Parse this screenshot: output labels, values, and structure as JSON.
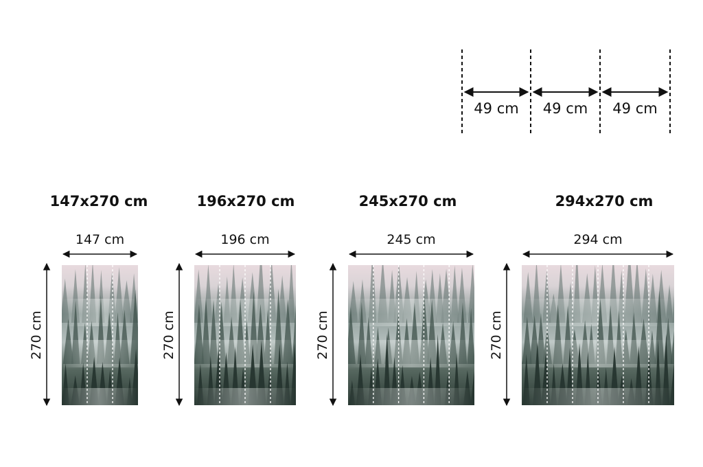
{
  "strip_legend": {
    "labels": [
      "49 cm",
      "49 cm",
      "49 cm"
    ]
  },
  "panels": [
    {
      "title": "147x270 cm",
      "width_label": "147 cm",
      "height_label": "270 cm",
      "strips": 3
    },
    {
      "title": "196x270 cm",
      "width_label": "196 cm",
      "height_label": "270 cm",
      "strips": 4
    },
    {
      "title": "245x270 cm",
      "width_label": "245 cm",
      "height_label": "270 cm",
      "strips": 5
    },
    {
      "title": "294x270 cm",
      "width_label": "294 cm",
      "height_label": "270 cm",
      "strips": 6
    }
  ],
  "colors": {
    "sky": "#e6d9dd",
    "forest_dark": "#2c3d38",
    "mist": "#b9c4c2",
    "ink": "#111111"
  }
}
